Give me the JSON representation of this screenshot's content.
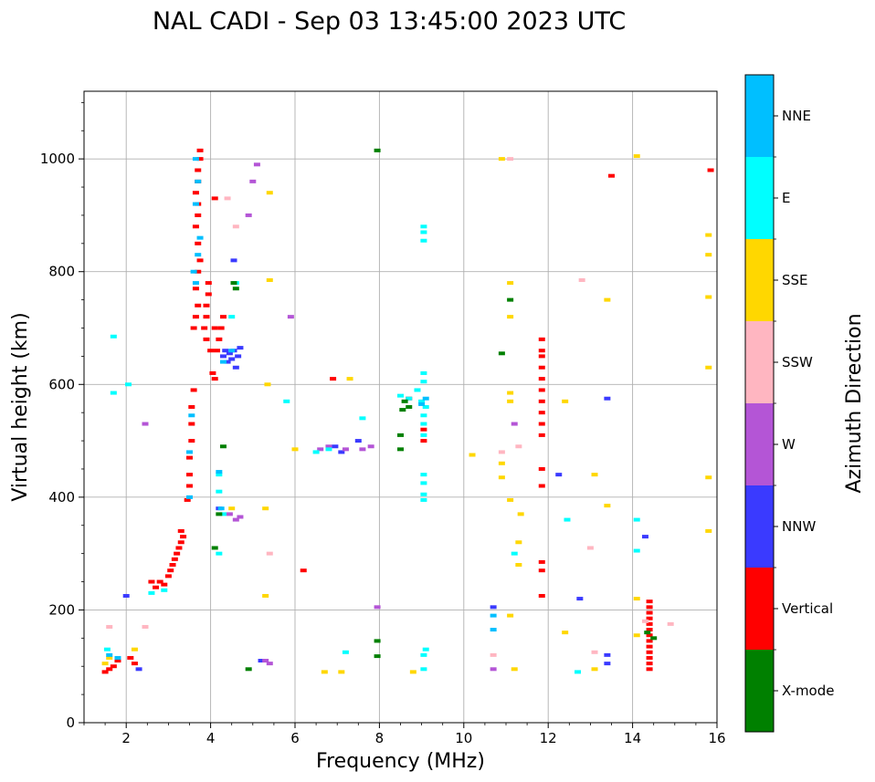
{
  "chart_data": {
    "type": "scatter",
    "title": "NAL CADI - Sep 03 13:45:00 2023 UTC",
    "xlabel": "Frequency (MHz)",
    "ylabel": "Virtual height (km)",
    "xlim": [
      1,
      16
    ],
    "ylim": [
      0,
      1120
    ],
    "xticks": [
      2,
      4,
      6,
      8,
      10,
      12,
      14,
      16
    ],
    "yticks": [
      0,
      200,
      400,
      600,
      800,
      1000
    ],
    "grid": true,
    "colorbar": {
      "label": "Azimuth Direction",
      "categories": [
        {
          "name": "X-mode",
          "color": "#008000"
        },
        {
          "name": "Vertical",
          "color": "#ff0000"
        },
        {
          "name": "NNW",
          "color": "#3a3aff"
        },
        {
          "name": "W",
          "color": "#b455d6"
        },
        {
          "name": "SSW",
          "color": "#ffb6c1"
        },
        {
          "name": "SSE",
          "color": "#ffd700"
        },
        {
          "name": "E",
          "color": "#00ffff"
        },
        {
          "name": "NNE",
          "color": "#00bfff"
        }
      ]
    },
    "series": [
      {
        "name": "Vertical",
        "points": [
          [
            1.5,
            90
          ],
          [
            1.6,
            95
          ],
          [
            1.7,
            100
          ],
          [
            1.8,
            110
          ],
          [
            2.1,
            115
          ],
          [
            2.2,
            105
          ],
          [
            2.6,
            250
          ],
          [
            2.7,
            240
          ],
          [
            2.8,
            250
          ],
          [
            2.9,
            245
          ],
          [
            3.0,
            260
          ],
          [
            3.05,
            270
          ],
          [
            3.1,
            280
          ],
          [
            3.15,
            290
          ],
          [
            3.2,
            300
          ],
          [
            3.25,
            310
          ],
          [
            3.3,
            320
          ],
          [
            3.35,
            330
          ],
          [
            3.3,
            340
          ],
          [
            3.45,
            395
          ],
          [
            3.5,
            420
          ],
          [
            3.5,
            440
          ],
          [
            3.5,
            470
          ],
          [
            3.55,
            500
          ],
          [
            3.55,
            530
          ],
          [
            3.55,
            560
          ],
          [
            3.6,
            590
          ],
          [
            3.6,
            700
          ],
          [
            3.65,
            720
          ],
          [
            3.7,
            740
          ],
          [
            3.65,
            770
          ],
          [
            3.7,
            800
          ],
          [
            3.75,
            820
          ],
          [
            3.7,
            850
          ],
          [
            3.65,
            880
          ],
          [
            3.7,
            900
          ],
          [
            3.7,
            920
          ],
          [
            3.65,
            940
          ],
          [
            3.7,
            960
          ],
          [
            3.7,
            980
          ],
          [
            3.75,
            1000
          ],
          [
            3.75,
            1015
          ],
          [
            3.85,
            700
          ],
          [
            3.9,
            720
          ],
          [
            3.9,
            740
          ],
          [
            3.95,
            760
          ],
          [
            3.95,
            780
          ],
          [
            3.9,
            680
          ],
          [
            4.0,
            660
          ],
          [
            4.1,
            700
          ],
          [
            4.15,
            660
          ],
          [
            4.05,
            620
          ],
          [
            4.1,
            610
          ],
          [
            4.2,
            680
          ],
          [
            4.25,
            700
          ],
          [
            4.3,
            720
          ],
          [
            4.1,
            930
          ],
          [
            6.2,
            270
          ],
          [
            6.9,
            610
          ],
          [
            8.7,
            575
          ],
          [
            9.05,
            520
          ],
          [
            9.05,
            500
          ],
          [
            11.85,
            680
          ],
          [
            11.85,
            660
          ],
          [
            11.85,
            650
          ],
          [
            11.85,
            630
          ],
          [
            11.85,
            610
          ],
          [
            11.85,
            590
          ],
          [
            11.85,
            570
          ],
          [
            11.85,
            550
          ],
          [
            11.85,
            530
          ],
          [
            11.85,
            510
          ],
          [
            11.85,
            450
          ],
          [
            11.85,
            420
          ],
          [
            11.85,
            285
          ],
          [
            11.85,
            270
          ],
          [
            11.85,
            225
          ],
          [
            13.5,
            970
          ],
          [
            15.85,
            980
          ],
          [
            14.4,
            215
          ],
          [
            14.4,
            205
          ],
          [
            14.4,
            195
          ],
          [
            14.4,
            185
          ],
          [
            14.4,
            175
          ],
          [
            14.4,
            165
          ],
          [
            14.4,
            155
          ],
          [
            14.4,
            145
          ],
          [
            14.4,
            135
          ],
          [
            14.4,
            125
          ],
          [
            14.4,
            115
          ],
          [
            14.4,
            105
          ],
          [
            14.4,
            95
          ]
        ]
      },
      {
        "name": "NNW",
        "points": [
          [
            2.0,
            225
          ],
          [
            2.3,
            95
          ],
          [
            4.3,
            650
          ],
          [
            4.35,
            660
          ],
          [
            4.4,
            640
          ],
          [
            4.45,
            655
          ],
          [
            4.5,
            645
          ],
          [
            4.55,
            660
          ],
          [
            4.6,
            630
          ],
          [
            4.65,
            650
          ],
          [
            4.7,
            665
          ],
          [
            4.2,
            380
          ],
          [
            4.55,
            820
          ],
          [
            5.2,
            110
          ],
          [
            6.95,
            490
          ],
          [
            7.1,
            480
          ],
          [
            7.5,
            500
          ],
          [
            10.7,
            205
          ],
          [
            12.25,
            440
          ],
          [
            12.75,
            220
          ],
          [
            13.4,
            575
          ],
          [
            13.4,
            120
          ],
          [
            13.4,
            105
          ],
          [
            14.3,
            330
          ]
        ]
      },
      {
        "name": "W",
        "points": [
          [
            2.45,
            530
          ],
          [
            4.45,
            370
          ],
          [
            4.6,
            360
          ],
          [
            4.7,
            365
          ],
          [
            5.3,
            110
          ],
          [
            5.4,
            105
          ],
          [
            6.6,
            485
          ],
          [
            6.8,
            490
          ],
          [
            7.2,
            485
          ],
          [
            7.6,
            485
          ],
          [
            7.8,
            490
          ],
          [
            5.9,
            720
          ],
          [
            5.0,
            960
          ],
          [
            5.1,
            990
          ],
          [
            4.9,
            900
          ],
          [
            11.2,
            530
          ],
          [
            10.7,
            95
          ],
          [
            7.95,
            205
          ]
        ]
      },
      {
        "name": "SSW",
        "points": [
          [
            1.6,
            170
          ],
          [
            2.45,
            170
          ],
          [
            4.4,
            930
          ],
          [
            4.6,
            880
          ],
          [
            5.4,
            300
          ],
          [
            10.7,
            120
          ],
          [
            10.9,
            480
          ],
          [
            11.1,
            1000
          ],
          [
            11.3,
            490
          ],
          [
            12.8,
            785
          ],
          [
            13.0,
            310
          ],
          [
            13.1,
            125
          ],
          [
            14.3,
            180
          ],
          [
            14.9,
            175
          ]
        ]
      },
      {
        "name": "SSE",
        "points": [
          [
            1.5,
            105
          ],
          [
            1.6,
            115
          ],
          [
            2.2,
            130
          ],
          [
            4.5,
            380
          ],
          [
            5.3,
            380
          ],
          [
            5.3,
            225
          ],
          [
            5.4,
            940
          ],
          [
            5.4,
            785
          ],
          [
            5.35,
            600
          ],
          [
            6.0,
            485
          ],
          [
            6.7,
            90
          ],
          [
            7.1,
            90
          ],
          [
            7.3,
            610
          ],
          [
            8.8,
            90
          ],
          [
            10.2,
            475
          ],
          [
            10.9,
            1000
          ],
          [
            10.9,
            460
          ],
          [
            10.9,
            435
          ],
          [
            11.1,
            780
          ],
          [
            11.1,
            720
          ],
          [
            11.1,
            585
          ],
          [
            11.1,
            570
          ],
          [
            11.1,
            395
          ],
          [
            11.1,
            190
          ],
          [
            11.2,
            95
          ],
          [
            11.3,
            320
          ],
          [
            11.35,
            370
          ],
          [
            11.3,
            280
          ],
          [
            12.4,
            570
          ],
          [
            12.4,
            160
          ],
          [
            13.1,
            440
          ],
          [
            13.1,
            95
          ],
          [
            13.4,
            750
          ],
          [
            13.4,
            385
          ],
          [
            14.1,
            1005
          ],
          [
            14.1,
            220
          ],
          [
            14.1,
            155
          ],
          [
            15.8,
            865
          ],
          [
            15.8,
            830
          ],
          [
            15.8,
            755
          ],
          [
            15.8,
            630
          ],
          [
            15.8,
            435
          ],
          [
            15.8,
            340
          ]
        ]
      },
      {
        "name": "E",
        "points": [
          [
            1.55,
            130
          ],
          [
            1.7,
            685
          ],
          [
            1.7,
            585
          ],
          [
            2.05,
            600
          ],
          [
            2.6,
            230
          ],
          [
            2.9,
            235
          ],
          [
            4.2,
            440
          ],
          [
            4.2,
            410
          ],
          [
            4.2,
            300
          ],
          [
            4.3,
            370
          ],
          [
            4.6,
            780
          ],
          [
            4.5,
            720
          ],
          [
            5.8,
            570
          ],
          [
            6.5,
            480
          ],
          [
            6.8,
            485
          ],
          [
            7.2,
            125
          ],
          [
            7.6,
            540
          ],
          [
            8.5,
            580
          ],
          [
            8.7,
            575
          ],
          [
            8.9,
            590
          ],
          [
            9.0,
            570
          ],
          [
            9.1,
            560
          ],
          [
            9.05,
            620
          ],
          [
            9.05,
            605
          ],
          [
            9.05,
            545
          ],
          [
            9.05,
            530
          ],
          [
            9.05,
            510
          ],
          [
            9.05,
            440
          ],
          [
            9.05,
            425
          ],
          [
            9.05,
            405
          ],
          [
            9.05,
            395
          ],
          [
            9.05,
            880
          ],
          [
            9.05,
            870
          ],
          [
            9.05,
            855
          ],
          [
            9.1,
            130
          ],
          [
            9.05,
            120
          ],
          [
            9.05,
            95
          ],
          [
            11.2,
            300
          ],
          [
            12.45,
            360
          ],
          [
            12.7,
            90
          ],
          [
            14.1,
            360
          ],
          [
            14.1,
            305
          ]
        ]
      },
      {
        "name": "NNE",
        "points": [
          [
            1.6,
            120
          ],
          [
            1.8,
            115
          ],
          [
            3.65,
            1000
          ],
          [
            3.7,
            960
          ],
          [
            3.65,
            920
          ],
          [
            3.75,
            860
          ],
          [
            3.7,
            830
          ],
          [
            3.6,
            800
          ],
          [
            3.65,
            780
          ],
          [
            3.55,
            545
          ],
          [
            3.5,
            480
          ],
          [
            3.5,
            400
          ],
          [
            4.2,
            445
          ],
          [
            4.25,
            380
          ],
          [
            4.5,
            660
          ],
          [
            4.3,
            640
          ],
          [
            10.7,
            190
          ],
          [
            10.7,
            165
          ],
          [
            9.0,
            565
          ],
          [
            9.1,
            575
          ]
        ]
      },
      {
        "name": "X-mode",
        "points": [
          [
            4.1,
            310
          ],
          [
            4.2,
            370
          ],
          [
            4.3,
            490
          ],
          [
            4.55,
            780
          ],
          [
            4.6,
            770
          ],
          [
            4.9,
            95
          ],
          [
            7.95,
            1015
          ],
          [
            7.95,
            145
          ],
          [
            7.95,
            118
          ],
          [
            8.5,
            510
          ],
          [
            8.5,
            485
          ],
          [
            8.6,
            570
          ],
          [
            8.7,
            560
          ],
          [
            8.55,
            555
          ],
          [
            10.9,
            655
          ],
          [
            11.1,
            750
          ],
          [
            14.35,
            160
          ],
          [
            14.5,
            150
          ]
        ]
      }
    ]
  }
}
